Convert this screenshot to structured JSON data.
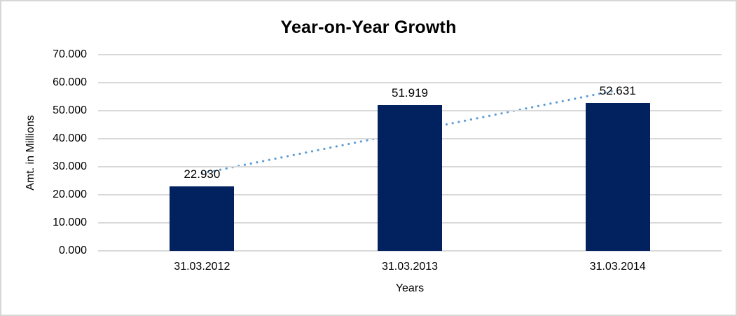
{
  "window": {
    "background": "#ffffff",
    "frame_border_color": "#d7d7d7"
  },
  "chart_data": {
    "type": "bar",
    "title": "Year-on-Year Growth",
    "xlabel": "Years",
    "ylabel": "Amt. in Millions",
    "categories": [
      "31.03.2012",
      "31.03.2013",
      "31.03.2014"
    ],
    "values": [
      22.93,
      51.919,
      52.631
    ],
    "bar_labels": [
      "22.930",
      "51.919",
      "52.631"
    ],
    "y_ticks": [
      "0.000",
      "10.000",
      "20.000",
      "30.000",
      "40.000",
      "50.000",
      "60.000",
      "70.000"
    ],
    "y_tick_step": 10,
    "ylim": [
      0,
      70
    ],
    "grid": "horizontal",
    "gridline_color": "#d9d9d9",
    "bar_color": "#02215f",
    "text_color": "#000000",
    "legend": "none",
    "trendline": {
      "kind": "linear",
      "style": "dotted",
      "color": "#5b9bd5"
    }
  }
}
